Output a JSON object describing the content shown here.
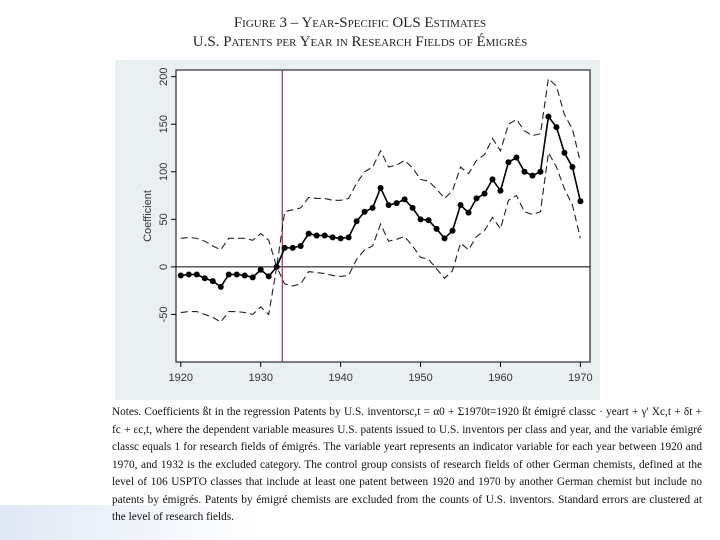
{
  "chart_data": {
    "type": "line",
    "title": "Figure 3 – Year-Specific OLS Estimates",
    "subtitle": "U.S. Patents per Year in Research Fields of Émigrés",
    "y_label": "Coefficient",
    "x": [
      1920,
      1921,
      1922,
      1923,
      1924,
      1925,
      1926,
      1927,
      1928,
      1929,
      1930,
      1931,
      1932,
      1933,
      1934,
      1935,
      1936,
      1937,
      1938,
      1939,
      1940,
      1941,
      1942,
      1943,
      1944,
      1945,
      1946,
      1947,
      1948,
      1949,
      1950,
      1951,
      1952,
      1953,
      1954,
      1955,
      1956,
      1957,
      1958,
      1959,
      1960,
      1961,
      1962,
      1963,
      1964,
      1965,
      1966,
      1967,
      1968,
      1969,
      1970
    ],
    "series": [
      {
        "name": "Upper",
        "color": "#222",
        "style": "dashed",
        "values": [
          30,
          31,
          30,
          27,
          22,
          18,
          30,
          30,
          30,
          28,
          35,
          28,
          0,
          58,
          60,
          62,
          73,
          72,
          72,
          70,
          70,
          72,
          88,
          100,
          105,
          122,
          105,
          107,
          112,
          104,
          92,
          90,
          82,
          72,
          80,
          105,
          98,
          112,
          118,
          135,
          122,
          150,
          155,
          143,
          138,
          140,
          198,
          190,
          160,
          145,
          110
        ]
      },
      {
        "name": "Estimate",
        "color": "#000",
        "style": "solid",
        "markers": true,
        "values": [
          -9,
          -8,
          -8,
          -12,
          -15,
          -21,
          -8,
          -8,
          -9,
          -11,
          -3,
          -10,
          0,
          20,
          20,
          22,
          35,
          33,
          33,
          31,
          30,
          31,
          48,
          58,
          62,
          83,
          65,
          67,
          71,
          62,
          50,
          49,
          40,
          30,
          38,
          65,
          57,
          72,
          77,
          92,
          80,
          110,
          115,
          100,
          96,
          100,
          158,
          147,
          120,
          105,
          69
        ]
      },
      {
        "name": "Lower",
        "color": "#222",
        "style": "dashed",
        "values": [
          -48,
          -47,
          -47,
          -50,
          -53,
          -58,
          -47,
          -47,
          -48,
          -50,
          -42,
          -50,
          0,
          -18,
          -20,
          -18,
          -5,
          -6,
          -7,
          -9,
          -10,
          -9,
          8,
          18,
          22,
          45,
          27,
          29,
          32,
          22,
          10,
          8,
          -2,
          -12,
          -4,
          25,
          18,
          32,
          38,
          52,
          40,
          70,
          75,
          58,
          55,
          58,
          120,
          105,
          82,
          65,
          30
        ]
      }
    ],
    "reference_line_x": 1932.7,
    "reference_line_color": "#a0304a",
    "xlim": [
      1919.4,
      1971.2
    ],
    "xticks": [
      1920,
      1930,
      1940,
      1950,
      1960,
      1970
    ],
    "ylim": [
      -100,
      207
    ],
    "yticks": [
      -50,
      0,
      50,
      100,
      150,
      200
    ],
    "zero_line": true,
    "notes": "Notes. Coefficients ßt in the regression Patents by U.S. inventorsc,t = α0 + Σ1970t=1920 ßt émigré classc · yeart + γ' Xc,t + δt + fc + εc,t, where the dependent variable measures U.S. patents issued to U.S. inventors per class and year, and the variable émigré classc equals 1 for research fields of émigrés. The variable yeart represents an indicator variable for each year between 1920 and 1970, and 1932 is the excluded category. The control group consists of research fields of other German chemists, defined at the level of 106 USPTO classes that include at least one patent between 1920 and 1970 by another German chemist but include no patents by émigrés. Patents by émigré chemists are excluded from the counts of U.S. inventors. Standard errors are clustered at the level of research fields."
  }
}
